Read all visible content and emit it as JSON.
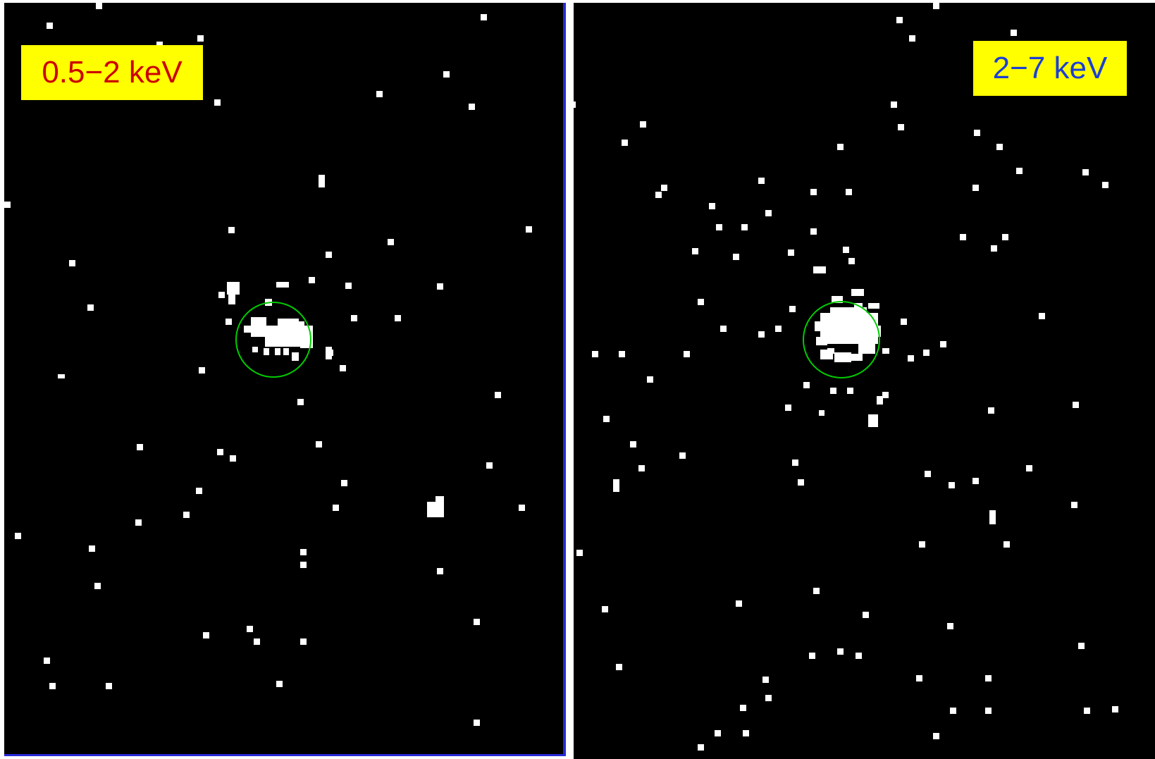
{
  "panels": [
    {
      "band": "0.5−2 keV",
      "label_color": "#cc0000",
      "label_background": "#ffff00",
      "region_color": "#00cc00",
      "divider_color": "#2a2ad8"
    },
    {
      "band": "2−7 keV",
      "label_color": "#1a3fd6",
      "label_background": "#ffff00",
      "region_color": "#00cc00"
    }
  ]
}
